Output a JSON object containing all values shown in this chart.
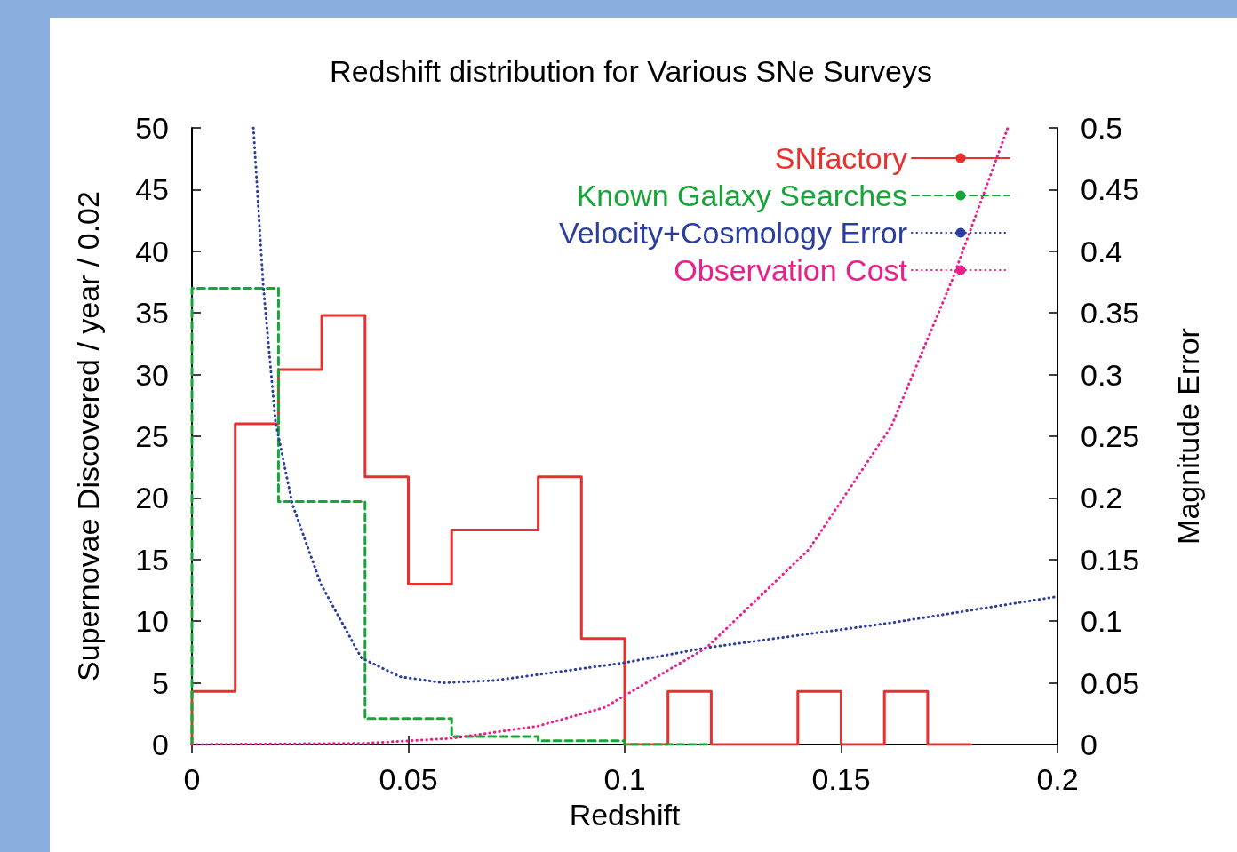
{
  "chart_data": {
    "type": "histogram",
    "title": "Redshift distribution for Various SNe Surveys",
    "xlabel": "Redshift",
    "ylabel": "Supernovae Discovered / year / 0.02",
    "y2label": "Magnitude Error",
    "xlim": [
      0,
      0.2
    ],
    "xticks": [
      0,
      0.05,
      0.1,
      0.15,
      0.2
    ],
    "ylim": [
      0,
      50
    ],
    "yticks": [
      0,
      5,
      10,
      15,
      20,
      25,
      30,
      35,
      40,
      45,
      50
    ],
    "y2lim": [
      0,
      0.5
    ],
    "y2ticks": [
      0,
      0.05,
      0.1,
      0.15,
      0.2,
      0.25,
      0.3,
      0.35,
      0.4,
      0.45,
      0.5
    ],
    "grid": false,
    "legend": "top right",
    "series": [
      {
        "name": "SNfactory",
        "color": "#e8312f",
        "line_style": "solid",
        "bins": [
          0,
          0.01,
          0.02,
          0.03,
          0.04,
          0.05,
          0.06,
          0.07,
          0.08,
          0.09,
          0.1,
          0.11,
          0.12,
          0.13,
          0.14,
          0.15,
          0.16,
          0.17,
          0.18
        ],
        "values": [
          4.3,
          26,
          30.4,
          34.8,
          21.7,
          13,
          17.4,
          17.4,
          21.7,
          8.6,
          0,
          4.3,
          0,
          0,
          4.3,
          0,
          4.3,
          0
        ]
      },
      {
        "name": "Known Galaxy Searches",
        "color": "#16a637",
        "line_style": "dashed",
        "bins": [
          0,
          0.02,
          0.04,
          0.06,
          0.08,
          0.1,
          0.12
        ],
        "values": [
          37,
          19.7,
          2.1,
          0.65,
          0.3,
          0
        ]
      },
      {
        "name": "Velocity+Cosmology Error",
        "type": "line",
        "axis": "y2",
        "color": "#2b3ea0",
        "line_style": "dotted",
        "x": [
          0.0142,
          0.0165,
          0.0193,
          0.0232,
          0.0298,
          0.0392,
          0.0481,
          0.0581,
          0.07,
          0.0994,
          0.1189,
          0.1616,
          0.2
        ],
        "values": [
          0.5,
          0.371,
          0.262,
          0.195,
          0.13,
          0.07,
          0.055,
          0.05,
          0.052,
          0.066,
          0.0785,
          0.0987,
          0.12
        ]
      },
      {
        "name": "Observation Cost",
        "type": "line",
        "axis": "y2",
        "color": "#ec1e8c",
        "line_style": "dotted",
        "x": [
          0,
          0.04,
          0.06,
          0.08,
          0.0953,
          0.1189,
          0.1425,
          0.1616,
          0.1758,
          0.1885
        ],
        "values": [
          0,
          0.001,
          0.005,
          0.015,
          0.03,
          0.0785,
          0.158,
          0.258,
          0.378,
          0.5
        ]
      }
    ]
  }
}
